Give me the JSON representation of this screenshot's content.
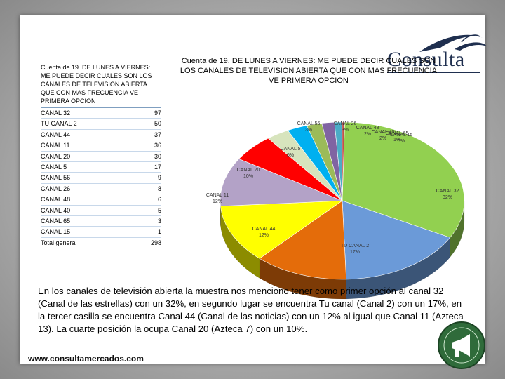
{
  "brand": {
    "name": "Consulta",
    "website": "www.consultamercados.com"
  },
  "table": {
    "header": "Cuenta de 19. DE LUNES A VIERNES: ME PUEDE DECIR CUALES SON LOS CANALES DE TELEVISION ABIERTA QUE CON MAS FRECUENCIA VE PRIMERA OPCION",
    "rows": [
      {
        "label": "CANAL 32",
        "value": "97"
      },
      {
        "label": "TU CANAL 2",
        "value": "50"
      },
      {
        "label": "CANAL 44",
        "value": "37"
      },
      {
        "label": "CANAL 11",
        "value": "36"
      },
      {
        "label": "CANAL 20",
        "value": "30"
      },
      {
        "label": "CANAL 5",
        "value": "17"
      },
      {
        "label": "CANAL 56",
        "value": "9"
      },
      {
        "label": "CANAL 26",
        "value": "8"
      },
      {
        "label": "CANAL 48",
        "value": "6"
      },
      {
        "label": "CANAL 40",
        "value": "5"
      },
      {
        "label": "CANAL 65",
        "value": "3"
      },
      {
        "label": "CANAL 15",
        "value": "1"
      }
    ],
    "total": {
      "label": "Total general",
      "value": "298"
    }
  },
  "chart_data": {
    "type": "pie",
    "title": "Cuenta de 19. DE LUNES A VIERNES: ME PUEDE DECIR CUALES SON LOS CANALES DE TELEVISION ABIERTA QUE CON MAS FRECUENCIA VE PRIMERA OPCION",
    "slices": [
      {
        "name": "CANAL 32",
        "value": 97,
        "label": "32%",
        "color": "#92d050"
      },
      {
        "name": "TU CANAL 2",
        "value": 50,
        "label": "17%",
        "color": "#6b9ad8"
      },
      {
        "name": "CANAL 44",
        "value": 37,
        "label": "12%",
        "color": "#e46c0a"
      },
      {
        "name": "CANAL 11",
        "value": 36,
        "label": "12%",
        "color": "#ffff00"
      },
      {
        "name": "CANAL 20",
        "value": 30,
        "label": "10%",
        "color": "#b3a2c7"
      },
      {
        "name": "CANAL 5",
        "value": 17,
        "label": "6%",
        "color": "#ff0000"
      },
      {
        "name": "CANAL 56",
        "value": 9,
        "label": "3%",
        "color": "#d7e4bd"
      },
      {
        "name": "CANAL 26",
        "value": 8,
        "label": "3%",
        "color": "#00b0f0"
      },
      {
        "name": "CANAL 48",
        "value": 6,
        "label": "2%",
        "color": "#9bbb59"
      },
      {
        "name": "CANAL 40",
        "value": 5,
        "label": "2%",
        "color": "#8064a2"
      },
      {
        "name": "CANAL 65",
        "value": 3,
        "label": "1%",
        "color": "#4bacc6"
      },
      {
        "name": "CANAL 15",
        "value": 1,
        "label": "0%",
        "color": "#c0504d"
      }
    ]
  },
  "summary": "En los canales de televisión abierta la muestra nos menciono tener como primer opción al canal 32 (Canal de las estrellas) con un 32%, en segundo lugar se encuentra Tu canal (Canal 2) con un 17%, en la tercer casilla se encuentra Canal 44 (Canal de las noticias) con un 12% al igual que Canal 11 (Azteca 13). La cuarte posición la ocupa Canal 20 (Azteca 7) con un 10%."
}
